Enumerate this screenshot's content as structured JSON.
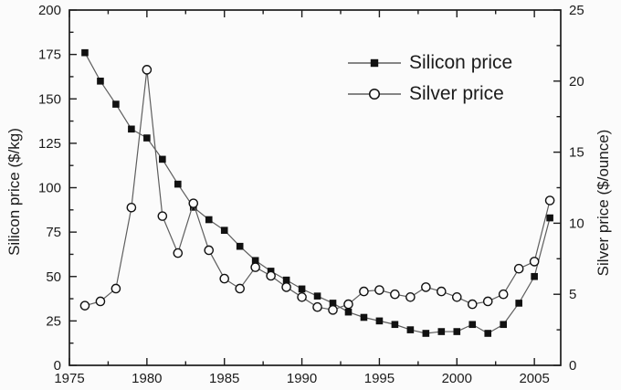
{
  "figure": {
    "background": "#fbfbfb",
    "axis_color": "#1c1c1c",
    "line_color": "#5e5e5e",
    "marker_color": "#111111",
    "circle_fill": "#fcfcfc",
    "text_color": "#1c1c1c"
  },
  "chart_data": {
    "type": "line",
    "title": "",
    "x": [
      1976,
      1977,
      1978,
      1979,
      1980,
      1981,
      1982,
      1983,
      1984,
      1985,
      1986,
      1987,
      1988,
      1989,
      1990,
      1991,
      1992,
      1993,
      1994,
      1995,
      1996,
      1997,
      1998,
      1999,
      2000,
      2001,
      2002,
      2003,
      2004,
      2005,
      2006
    ],
    "series": [
      {
        "name": "Silicon price",
        "axis": "left",
        "marker": "filled-square",
        "values": [
          176,
          160,
          147,
          133,
          128,
          116,
          102,
          89,
          82,
          76,
          67,
          59,
          53,
          48,
          43,
          39,
          35,
          30,
          27,
          25,
          23,
          20,
          18,
          19,
          19,
          23,
          18,
          23,
          35,
          50,
          83
        ]
      },
      {
        "name": "Silver price",
        "axis": "right",
        "marker": "open-circle",
        "values": [
          4.2,
          4.5,
          5.4,
          11.1,
          20.8,
          10.5,
          7.9,
          11.4,
          8.1,
          6.1,
          5.4,
          6.9,
          6.3,
          5.5,
          4.8,
          4.1,
          3.9,
          4.3,
          5.2,
          5.3,
          5.0,
          4.8,
          5.5,
          5.2,
          4.8,
          4.3,
          4.5,
          5.0,
          6.8,
          7.3,
          11.6
        ]
      }
    ],
    "x_axis": {
      "min": 1975,
      "max": 2006.7,
      "ticks": [
        1975,
        1980,
        1985,
        1990,
        1995,
        2000,
        2005
      ],
      "tick_labels": [
        "1975",
        "1980",
        "1985",
        "1990",
        "1995",
        "2000",
        "2005"
      ],
      "minor_step": 2.5
    },
    "left_axis": {
      "label": "Silicon price ($/kg)",
      "min": 0,
      "max": 200,
      "ticks": [
        0,
        25,
        50,
        75,
        100,
        125,
        150,
        175,
        200
      ],
      "minor_step": 12.5
    },
    "right_axis": {
      "label": "Silver price ($/ounce)",
      "min": 0,
      "max": 25,
      "ticks": [
        0,
        5,
        10,
        15,
        20,
        25
      ],
      "minor_step": 2.5
    },
    "legend": {
      "position": "top-right",
      "entries": [
        "Silicon price",
        "Silver price"
      ]
    },
    "grid": "off"
  }
}
